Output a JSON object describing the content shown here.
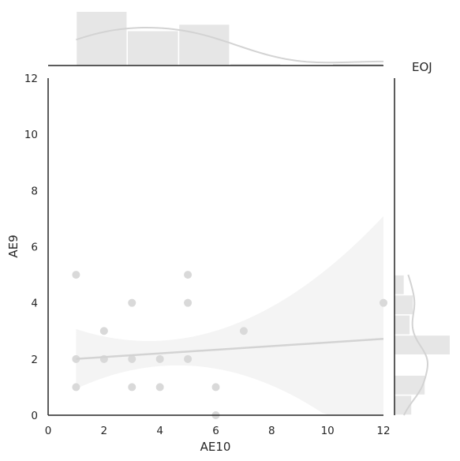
{
  "chart_data": {
    "type": "scatter",
    "title": "EOJ",
    "xlabel": "AE10",
    "ylabel": "AE9",
    "xlim": [
      0,
      12
    ],
    "ylim": [
      0,
      12
    ],
    "xticks": [
      "0",
      "2",
      "4",
      "6",
      "8",
      "10",
      "12"
    ],
    "yticks": [
      "0",
      "2",
      "4",
      "6",
      "8",
      "10",
      "12"
    ],
    "grid": false,
    "points": [
      {
        "x": 1,
        "y": 5
      },
      {
        "x": 5,
        "y": 5
      },
      {
        "x": 3,
        "y": 4
      },
      {
        "x": 5,
        "y": 4
      },
      {
        "x": 12,
        "y": 4
      },
      {
        "x": 2,
        "y": 3
      },
      {
        "x": 7,
        "y": 3
      },
      {
        "x": 1,
        "y": 2
      },
      {
        "x": 2,
        "y": 2
      },
      {
        "x": 3,
        "y": 2
      },
      {
        "x": 4,
        "y": 2
      },
      {
        "x": 5,
        "y": 2
      },
      {
        "x": 1,
        "y": 1
      },
      {
        "x": 3,
        "y": 1
      },
      {
        "x": 4,
        "y": 1
      },
      {
        "x": 6,
        "y": 1
      },
      {
        "x": 6,
        "y": 0
      }
    ],
    "regression": {
      "intercept": 1.94,
      "slope": 0.065
    },
    "top_histogram": {
      "bin_edges": [
        1,
        2.83,
        4.67,
        6.5,
        8.33,
        10.17,
        12
      ],
      "counts": [
        5,
        3.2,
        3.8,
        0.15,
        0,
        0.15
      ]
    },
    "right_histogram": {
      "bin_edges": [
        0,
        0.714,
        1.429,
        2.143,
        2.857,
        3.571,
        4.286,
        5
      ],
      "counts": [
        2,
        3.6,
        0,
        6.6,
        1.8,
        2.2,
        1.1
      ]
    },
    "colors": {
      "marker": "#d9d9d9",
      "line": "#d3d3d3",
      "band": "#f4f4f4",
      "hist": "#e6e6e6",
      "axis": "#262626"
    }
  }
}
